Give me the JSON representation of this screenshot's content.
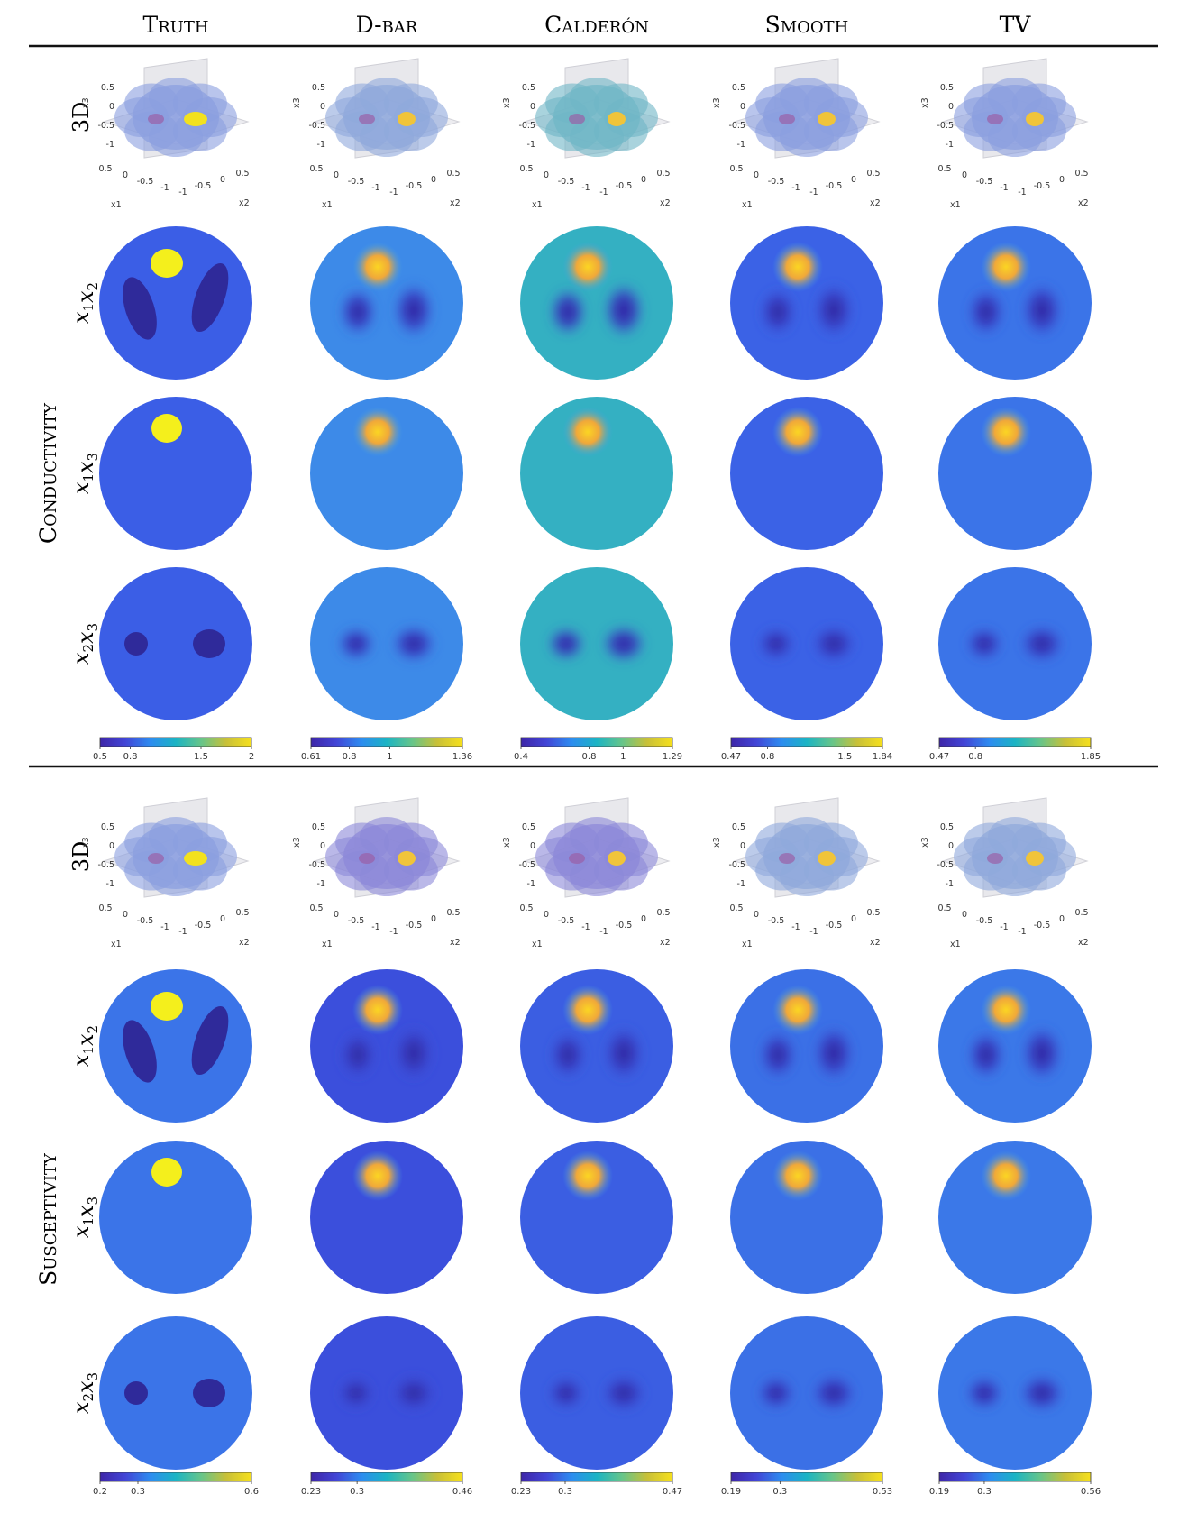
{
  "columns": [
    "Truth",
    "D-bar",
    "Calderón",
    "Smooth",
    "TV"
  ],
  "sections": [
    {
      "name": "Conductivity",
      "row_labels": [
        "3D",
        "x1x2",
        "x1x3",
        "x2x3"
      ],
      "colorbars": [
        {
          "min": 0.5,
          "max": 2,
          "ticks": [
            "0.5",
            "0.8",
            "1.5",
            "2"
          ]
        },
        {
          "min": 0.61,
          "max": 1.36,
          "ticks": [
            "0.61",
            "0.8",
            "1",
            "1.36"
          ]
        },
        {
          "min": 0.4,
          "max": 1.29,
          "ticks": [
            "0.4",
            "0.8",
            "1",
            "1.29"
          ]
        },
        {
          "min": 0.47,
          "max": 1.84,
          "ticks": [
            "0.47",
            "0.8",
            "1.5",
            "1.84"
          ]
        },
        {
          "min": 0.47,
          "max": 1.85,
          "ticks": [
            "0.47",
            "0.8",
            "1.85"
          ]
        }
      ]
    },
    {
      "name": "Susceptivity",
      "row_labels": [
        "3D",
        "x1x2",
        "x1x3",
        "x2x3"
      ],
      "colorbars": [
        {
          "min": 0.2,
          "max": 0.6,
          "ticks": [
            "0.2",
            "0.3",
            "0.6"
          ]
        },
        {
          "min": 0.23,
          "max": 0.46,
          "ticks": [
            "0.23",
            "0.3",
            "0.46"
          ]
        },
        {
          "min": 0.23,
          "max": 0.47,
          "ticks": [
            "0.23",
            "0.3",
            "0.47"
          ]
        },
        {
          "min": 0.19,
          "max": 0.53,
          "ticks": [
            "0.19",
            "0.3",
            "0.53"
          ]
        },
        {
          "min": 0.19,
          "max": 0.56,
          "ticks": [
            "0.19",
            "0.3",
            "0.56"
          ]
        }
      ]
    }
  ],
  "axis3d": {
    "x3_label": "x3",
    "x1_label": "x1",
    "x2_label": "x2",
    "x3_ticks": [
      "0.5",
      "0",
      "-0.5",
      "-1"
    ],
    "x1_ticks": [
      "0.5",
      "0",
      "-0.5",
      "-1"
    ],
    "x2_ticks": [
      "-1",
      "-0.5",
      "0",
      "0.5"
    ]
  },
  "palette": [
    "#3e26a8",
    "#4245d6",
    "#2d8cf0",
    "#1bb4c4",
    "#66c58a",
    "#c8c038",
    "#f6e01d"
  ],
  "background_color": "#3b68e8"
}
